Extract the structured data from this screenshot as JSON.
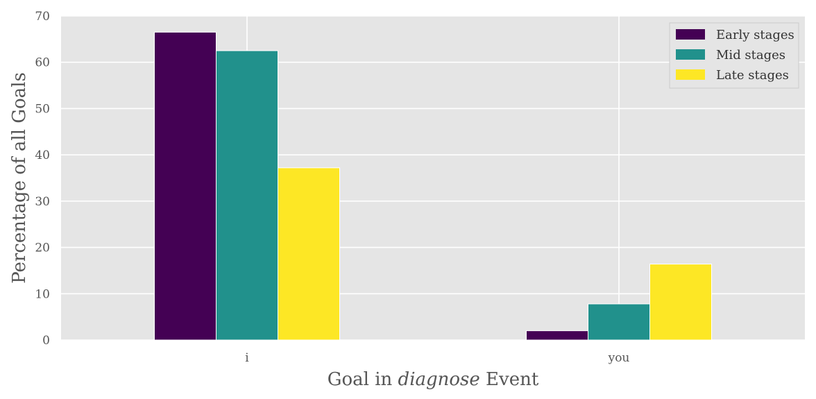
{
  "chart_data": {
    "type": "bar",
    "categories": [
      "i",
      "you"
    ],
    "series": [
      {
        "name": "Early stages",
        "values": [
          66.5,
          2.0
        ],
        "color": "#440154"
      },
      {
        "name": "Mid stages",
        "values": [
          62.5,
          7.8
        ],
        "color": "#21918c"
      },
      {
        "name": "Late stages",
        "values": [
          37.2,
          16.4
        ],
        "color": "#fde725"
      }
    ],
    "xlabel_parts": [
      "Goal in ",
      "diagnose",
      " Event"
    ],
    "ylabel": "Percentage of all Goals",
    "ylim": [
      0,
      70
    ],
    "yticks": [
      0,
      10,
      20,
      30,
      40,
      50,
      60,
      70
    ],
    "grid": true,
    "legend_position": "top-right",
    "background_color": "#e5e5e5",
    "grid_color": "#ffffff"
  }
}
